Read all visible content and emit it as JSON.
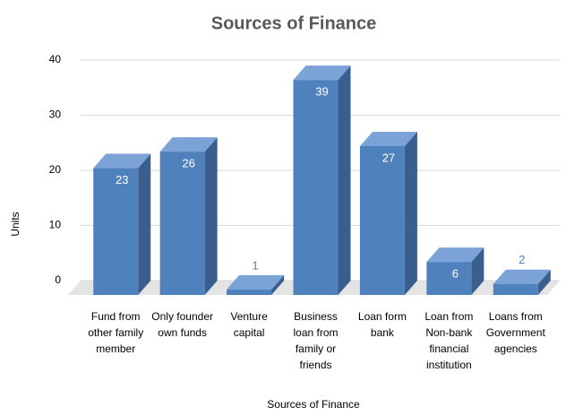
{
  "chart_data": {
    "type": "bar3d",
    "title": "Sources of Finance",
    "x_label": "Sources of Finance",
    "y_label": "Units",
    "categories": [
      "Fund from other family member",
      "Only founder own funds",
      "Venture capital",
      "Business loan from family or friends",
      "Loan form bank",
      "Loan from Non-bank financial institution",
      "Loans from Government agencies"
    ],
    "values": [
      23,
      26,
      1,
      39,
      27,
      6,
      2
    ],
    "color": "#4f81bd",
    "ylim": [
      0,
      40
    ],
    "yticks": [
      0,
      10,
      20,
      30,
      40
    ],
    "grid": true
  }
}
